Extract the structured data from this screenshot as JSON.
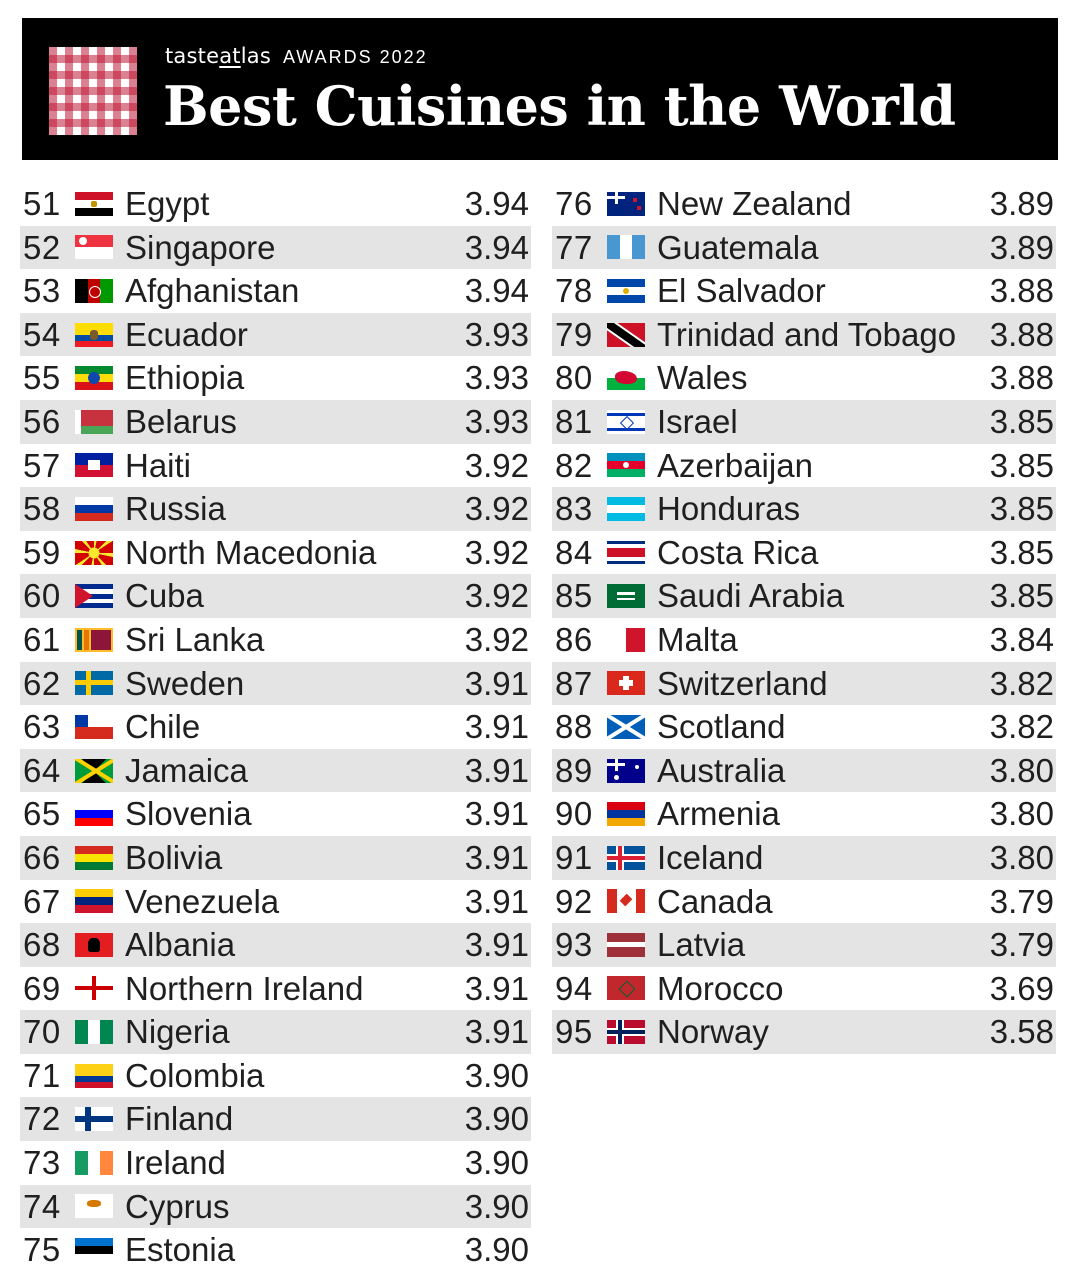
{
  "header": {
    "brand_prefix": "taste",
    "brand_underlined": "at",
    "brand_suffix": "las",
    "award": "AWARDS 2022",
    "title": "Best Cuisines in the World"
  },
  "left_rows": [
    {
      "rank": "51",
      "country": "Egypt",
      "score": "3.94",
      "flag": "egypt-flag-icon"
    },
    {
      "rank": "52",
      "country": "Singapore",
      "score": "3.94",
      "flag": "singapore-flag-icon"
    },
    {
      "rank": "53",
      "country": "Afghanistan",
      "score": "3.94",
      "flag": "afghanistan-flag-icon"
    },
    {
      "rank": "54",
      "country": "Ecuador",
      "score": "3.93",
      "flag": "ecuador-flag-icon"
    },
    {
      "rank": "55",
      "country": "Ethiopia",
      "score": "3.93",
      "flag": "ethiopia-flag-icon"
    },
    {
      "rank": "56",
      "country": "Belarus",
      "score": "3.93",
      "flag": "belarus-flag-icon"
    },
    {
      "rank": "57",
      "country": "Haiti",
      "score": "3.92",
      "flag": "haiti-flag-icon"
    },
    {
      "rank": "58",
      "country": "Russia",
      "score": "3.92",
      "flag": "russia-flag-icon"
    },
    {
      "rank": "59",
      "country": "North Macedonia",
      "score": "3.92",
      "flag": "north-macedonia-flag-icon"
    },
    {
      "rank": "60",
      "country": "Cuba",
      "score": "3.92",
      "flag": "cuba-flag-icon"
    },
    {
      "rank": "61",
      "country": "Sri Lanka",
      "score": "3.92",
      "flag": "sri-lanka-flag-icon"
    },
    {
      "rank": "62",
      "country": "Sweden",
      "score": "3.91",
      "flag": "sweden-flag-icon"
    },
    {
      "rank": "63",
      "country": "Chile",
      "score": "3.91",
      "flag": "chile-flag-icon"
    },
    {
      "rank": "64",
      "country": "Jamaica",
      "score": "3.91",
      "flag": "jamaica-flag-icon"
    },
    {
      "rank": "65",
      "country": "Slovenia",
      "score": "3.91",
      "flag": "slovenia-flag-icon"
    },
    {
      "rank": "66",
      "country": "Bolivia",
      "score": "3.91",
      "flag": "bolivia-flag-icon"
    },
    {
      "rank": "67",
      "country": "Venezuela",
      "score": "3.91",
      "flag": "venezuela-flag-icon"
    },
    {
      "rank": "68",
      "country": "Albania",
      "score": "3.91",
      "flag": "albania-flag-icon"
    },
    {
      "rank": "69",
      "country": "Northern Ireland",
      "score": "3.91",
      "flag": "northern-ireland-flag-icon"
    },
    {
      "rank": "70",
      "country": "Nigeria",
      "score": "3.91",
      "flag": "nigeria-flag-icon"
    },
    {
      "rank": "71",
      "country": "Colombia",
      "score": "3.90",
      "flag": "colombia-flag-icon"
    },
    {
      "rank": "72",
      "country": "Finland",
      "score": "3.90",
      "flag": "finland-flag-icon"
    },
    {
      "rank": "73",
      "country": "Ireland",
      "score": "3.90",
      "flag": "ireland-flag-icon"
    },
    {
      "rank": "74",
      "country": "Cyprus",
      "score": "3.90",
      "flag": "cyprus-flag-icon"
    },
    {
      "rank": "75",
      "country": "Estonia",
      "score": "3.90",
      "flag": "estonia-flag-icon"
    }
  ],
  "right_rows": [
    {
      "rank": "76",
      "country": "New Zealand",
      "score": "3.89",
      "flag": "new-zealand-flag-icon"
    },
    {
      "rank": "77",
      "country": "Guatemala",
      "score": "3.89",
      "flag": "guatemala-flag-icon"
    },
    {
      "rank": "78",
      "country": "El Salvador",
      "score": "3.88",
      "flag": "el-salvador-flag-icon"
    },
    {
      "rank": "79",
      "country": "Trinidad and Tobago",
      "score": "3.88",
      "flag": "trinidad-and-tobago-flag-icon"
    },
    {
      "rank": "80",
      "country": "Wales",
      "score": "3.88",
      "flag": "wales-flag-icon"
    },
    {
      "rank": "81",
      "country": "Israel",
      "score": "3.85",
      "flag": "israel-flag-icon"
    },
    {
      "rank": "82",
      "country": "Azerbaijan",
      "score": "3.85",
      "flag": "azerbaijan-flag-icon"
    },
    {
      "rank": "83",
      "country": "Honduras",
      "score": "3.85",
      "flag": "honduras-flag-icon"
    },
    {
      "rank": "84",
      "country": "Costa Rica",
      "score": "3.85",
      "flag": "costa-rica-flag-icon"
    },
    {
      "rank": "85",
      "country": "Saudi Arabia",
      "score": "3.85",
      "flag": "saudi-arabia-flag-icon"
    },
    {
      "rank": "86",
      "country": "Malta",
      "score": "3.84",
      "flag": "malta-flag-icon"
    },
    {
      "rank": "87",
      "country": "Switzerland",
      "score": "3.82",
      "flag": "switzerland-flag-icon"
    },
    {
      "rank": "88",
      "country": "Scotland",
      "score": "3.82",
      "flag": "scotland-flag-icon"
    },
    {
      "rank": "89",
      "country": "Australia",
      "score": "3.80",
      "flag": "australia-flag-icon"
    },
    {
      "rank": "90",
      "country": "Armenia",
      "score": "3.80",
      "flag": "armenia-flag-icon"
    },
    {
      "rank": "91",
      "country": "Iceland",
      "score": "3.80",
      "flag": "iceland-flag-icon"
    },
    {
      "rank": "92",
      "country": "Canada",
      "score": "3.79",
      "flag": "canada-flag-icon"
    },
    {
      "rank": "93",
      "country": "Latvia",
      "score": "3.79",
      "flag": "latvia-flag-icon"
    },
    {
      "rank": "94",
      "country": "Morocco",
      "score": "3.69",
      "flag": "morocco-flag-icon"
    },
    {
      "rank": "95",
      "country": "Norway",
      "score": "3.58",
      "flag": "norway-flag-icon"
    }
  ],
  "colors": {
    "banner_bg": "#000000",
    "row_shade": "#e4e4e4",
    "text": "#1f1f1f",
    "logo_red": "#be1937"
  }
}
